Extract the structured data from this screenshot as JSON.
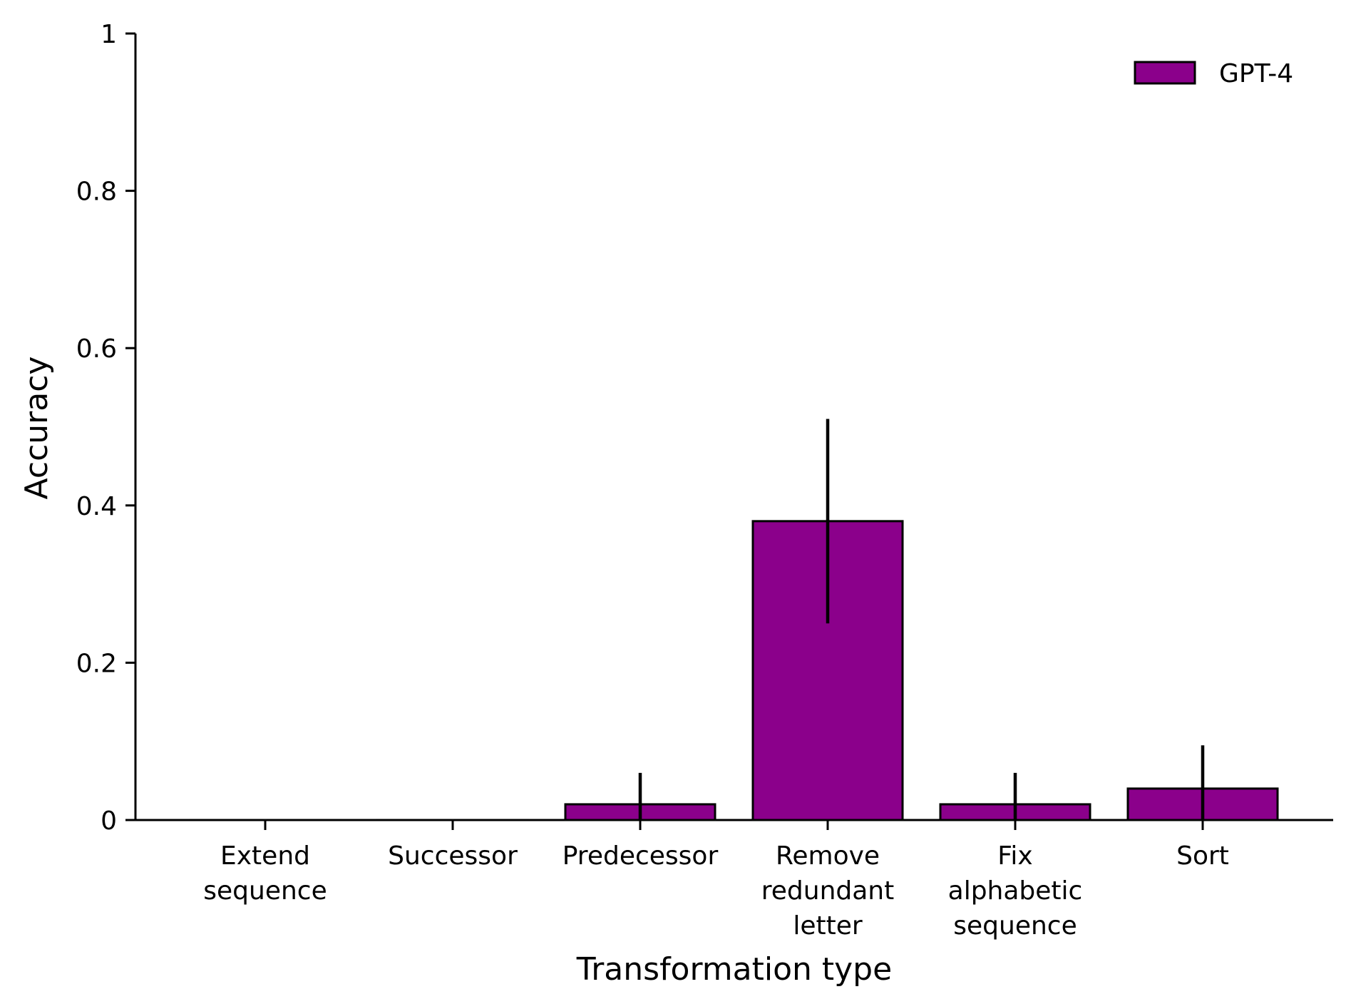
{
  "chart_data": {
    "type": "bar",
    "title": "",
    "xlabel": "Transformation type",
    "ylabel": "Accuracy",
    "ylim": [
      0,
      1
    ],
    "yticks": [
      "0",
      "0.2",
      "0.4",
      "0.6",
      "0.8",
      "1"
    ],
    "ytick_values": [
      0,
      0.2,
      0.4,
      0.6,
      0.8,
      1
    ],
    "categories": [
      [
        "Extend",
        "sequence"
      ],
      [
        "Successor"
      ],
      [
        "Predecessor"
      ],
      [
        "Remove",
        "redundant",
        "letter"
      ],
      [
        "Fix",
        "alphabetic",
        "sequence"
      ],
      [
        "Sort"
      ]
    ],
    "series": [
      {
        "name": "GPT-4",
        "color": "#8b008b",
        "values": [
          0.0,
          0.0,
          0.02,
          0.38,
          0.02,
          0.04
        ],
        "error_low": [
          0.0,
          0.0,
          0.0,
          0.25,
          0.0,
          0.0
        ],
        "error_high": [
          0.0,
          0.0,
          0.06,
          0.51,
          0.06,
          0.095
        ]
      }
    ],
    "grid": false,
    "legend_position": "top-right"
  }
}
